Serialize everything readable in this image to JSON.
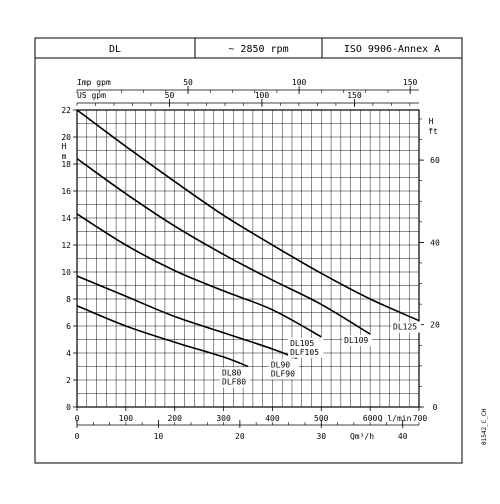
{
  "header": {
    "model": "DL",
    "speed": "~ 2850 rpm",
    "standard": "ISO 9906-Annex A"
  },
  "figure_code": "01542_C_CH",
  "chart_data": {
    "type": "line",
    "title": "",
    "axes": {
      "x_primary": {
        "label": "Q l/min",
        "range": [
          0,
          700
        ],
        "ticks": [
          0,
          100,
          200,
          300,
          400,
          500,
          600,
          700
        ]
      },
      "x_imp_gpm": {
        "label": "Imp gpm",
        "range": [
          0,
          153.98
        ],
        "ticks": [
          50,
          100,
          150
        ]
      },
      "x_us_gpm": {
        "label": "US gpm",
        "range": [
          0,
          184.92
        ],
        "ticks": [
          50,
          100,
          150
        ]
      },
      "x_m3h": {
        "label": "Qm³/h",
        "range": [
          0,
          42
        ],
        "ticks": [
          0,
          10,
          20,
          30,
          40
        ]
      },
      "y_left": {
        "label": "H m",
        "range": [
          0,
          22
        ],
        "ticks": [
          0,
          2,
          4,
          6,
          8,
          10,
          12,
          14,
          16,
          18,
          20,
          22
        ]
      },
      "y_right": {
        "label": "H ft",
        "range": [
          0,
          72.18
        ],
        "ticks": [
          0,
          20,
          40,
          60
        ]
      }
    },
    "grid": true,
    "series": [
      {
        "name": "DL125",
        "x": [
          0,
          100,
          200,
          300,
          400,
          500,
          600,
          700
        ],
        "y": [
          22,
          19.3,
          16.7,
          14.2,
          12.0,
          9.9,
          8.0,
          6.4
        ]
      },
      {
        "name": "DL109",
        "x": [
          0,
          100,
          200,
          300,
          400,
          500,
          600
        ],
        "y": [
          18.4,
          15.8,
          13.4,
          11.3,
          9.4,
          7.6,
          5.4
        ]
      },
      {
        "name": "DL105",
        "x": [
          0,
          100,
          200,
          300,
          400,
          500
        ],
        "y": [
          14.3,
          12.0,
          10.1,
          8.6,
          7.2,
          5.2
        ]
      },
      {
        "name": "DLF105",
        "x": [
          0,
          100,
          200,
          300,
          400,
          500
        ],
        "y": [
          14.3,
          12.0,
          10.1,
          8.6,
          7.2,
          5.2
        ]
      },
      {
        "name": "DL90",
        "x": [
          0,
          100,
          200,
          300,
          400,
          450
        ],
        "y": [
          9.7,
          8.2,
          6.7,
          5.5,
          4.3,
          3.6
        ]
      },
      {
        "name": "DLF90",
        "x": [
          0,
          100,
          200,
          300,
          400,
          450
        ],
        "y": [
          9.7,
          8.2,
          6.7,
          5.5,
          4.3,
          3.6
        ]
      },
      {
        "name": "DL80",
        "x": [
          0,
          100,
          200,
          300,
          350
        ],
        "y": [
          7.5,
          6.0,
          4.8,
          3.7,
          3.0
        ]
      },
      {
        "name": "DLF80",
        "x": [
          0,
          100,
          200,
          300,
          350
        ],
        "y": [
          7.5,
          6.0,
          4.8,
          3.7,
          3.0
        ]
      }
    ],
    "curve_labels": [
      {
        "lines": [
          "DL125"
        ],
        "curve": "DL125"
      },
      {
        "lines": [
          "DL109"
        ],
        "curve": "DL109"
      },
      {
        "lines": [
          "DL105",
          "DLF105"
        ],
        "curve": "DL105"
      },
      {
        "lines": [
          "DL90",
          "DLF90"
        ],
        "curve": "DL90"
      },
      {
        "lines": [
          "DL80",
          "DLF80"
        ],
        "curve": "DL80"
      }
    ]
  }
}
